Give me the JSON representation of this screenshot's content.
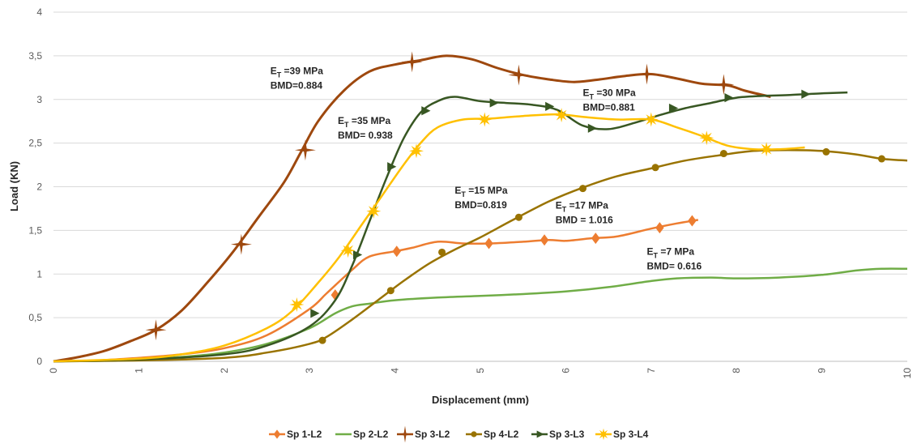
{
  "chart_data": {
    "type": "line",
    "title": "",
    "xlabel": "Displacement (mm)",
    "ylabel": "Load (KN)",
    "xlim": [
      0,
      10
    ],
    "ylim": [
      0,
      4
    ],
    "x_ticks": [
      "0",
      "1",
      "2",
      "3",
      "4",
      "5",
      "6",
      "7",
      "8",
      "9",
      "10"
    ],
    "y_ticks": [
      "0",
      "0,5",
      "1",
      "1,5",
      "2",
      "2,5",
      "3",
      "3,5",
      "4"
    ],
    "grid": "horizontal",
    "legend_position": "bottom",
    "series": [
      {
        "name": "Sp 1-L2",
        "color": "#ED7D31",
        "marker": "diamond",
        "points": [
          [
            0,
            0
          ],
          [
            0.5,
            0.01
          ],
          [
            1,
            0.04
          ],
          [
            1.5,
            0.08
          ],
          [
            2,
            0.15
          ],
          [
            2.5,
            0.3
          ],
          [
            3,
            0.6
          ],
          [
            3.2,
            0.78
          ],
          [
            3.5,
            1.05
          ],
          [
            3.7,
            1.2
          ],
          [
            4,
            1.26
          ],
          [
            4.2,
            1.3
          ],
          [
            4.5,
            1.37
          ],
          [
            4.8,
            1.35
          ],
          [
            5.1,
            1.35
          ],
          [
            5.5,
            1.37
          ],
          [
            5.8,
            1.39
          ],
          [
            6,
            1.38
          ],
          [
            6.3,
            1.41
          ],
          [
            6.6,
            1.43
          ],
          [
            7,
            1.52
          ],
          [
            7.3,
            1.58
          ],
          [
            7.55,
            1.62
          ]
        ],
        "markers_at": [
          [
            3.3,
            0.76
          ],
          [
            4.02,
            1.26
          ],
          [
            5.1,
            1.35
          ],
          [
            5.75,
            1.39
          ],
          [
            6.35,
            1.41
          ],
          [
            7.1,
            1.53
          ],
          [
            7.48,
            1.61
          ]
        ]
      },
      {
        "name": "Sp 2-L2",
        "color": "#70AD47",
        "marker": "dash",
        "points": [
          [
            0,
            0
          ],
          [
            0.5,
            0.005
          ],
          [
            1,
            0.02
          ],
          [
            1.5,
            0.05
          ],
          [
            2,
            0.1
          ],
          [
            2.5,
            0.2
          ],
          [
            3,
            0.38
          ],
          [
            3.3,
            0.55
          ],
          [
            3.5,
            0.63
          ],
          [
            3.7,
            0.66
          ],
          [
            4,
            0.7
          ],
          [
            4.5,
            0.73
          ],
          [
            5,
            0.75
          ],
          [
            5.5,
            0.77
          ],
          [
            6,
            0.8
          ],
          [
            6.5,
            0.85
          ],
          [
            7,
            0.92
          ],
          [
            7.3,
            0.95
          ],
          [
            7.7,
            0.96
          ],
          [
            8,
            0.95
          ],
          [
            8.5,
            0.96
          ],
          [
            9,
            0.99
          ],
          [
            9.4,
            1.04
          ],
          [
            9.7,
            1.06
          ],
          [
            10,
            1.06
          ]
        ],
        "markers_at": []
      },
      {
        "name": "Sp 3-L2",
        "color": "#9E480E",
        "marker": "star4",
        "points": [
          [
            0,
            0
          ],
          [
            0.3,
            0.05
          ],
          [
            0.6,
            0.12
          ],
          [
            0.9,
            0.23
          ],
          [
            1.2,
            0.36
          ],
          [
            1.5,
            0.58
          ],
          [
            1.8,
            0.9
          ],
          [
            2.1,
            1.25
          ],
          [
            2.4,
            1.65
          ],
          [
            2.7,
            2.05
          ],
          [
            2.9,
            2.4
          ],
          [
            3.1,
            2.75
          ],
          [
            3.4,
            3.1
          ],
          [
            3.7,
            3.32
          ],
          [
            4,
            3.4
          ],
          [
            4.3,
            3.45
          ],
          [
            4.6,
            3.5
          ],
          [
            4.9,
            3.46
          ],
          [
            5.2,
            3.36
          ],
          [
            5.5,
            3.28
          ],
          [
            5.8,
            3.23
          ],
          [
            6.1,
            3.2
          ],
          [
            6.4,
            3.23
          ],
          [
            6.7,
            3.27
          ],
          [
            7,
            3.29
          ],
          [
            7.3,
            3.24
          ],
          [
            7.6,
            3.18
          ],
          [
            7.9,
            3.16
          ],
          [
            8.1,
            3.1
          ],
          [
            8.4,
            3.03
          ]
        ],
        "markers_at": [
          [
            1.2,
            0.36
          ],
          [
            2.2,
            1.34
          ],
          [
            2.95,
            2.42
          ],
          [
            4.2,
            3.43
          ],
          [
            5.45,
            3.28
          ],
          [
            6.95,
            3.29
          ],
          [
            7.85,
            3.17
          ]
        ]
      },
      {
        "name": "Sp 4-L2",
        "color": "#997300",
        "marker": "circle",
        "points": [
          [
            0,
            0
          ],
          [
            1,
            0.01
          ],
          [
            2,
            0.04
          ],
          [
            2.5,
            0.1
          ],
          [
            3,
            0.2
          ],
          [
            3.2,
            0.28
          ],
          [
            3.5,
            0.48
          ],
          [
            3.8,
            0.7
          ],
          [
            4.1,
            0.92
          ],
          [
            4.4,
            1.12
          ],
          [
            4.7,
            1.28
          ],
          [
            5,
            1.42
          ],
          [
            5.4,
            1.63
          ],
          [
            5.8,
            1.83
          ],
          [
            6.2,
            1.99
          ],
          [
            6.6,
            2.12
          ],
          [
            7,
            2.21
          ],
          [
            7.4,
            2.3
          ],
          [
            7.8,
            2.36
          ],
          [
            8.2,
            2.41
          ],
          [
            8.6,
            2.42
          ],
          [
            9,
            2.41
          ],
          [
            9.4,
            2.37
          ],
          [
            9.7,
            2.32
          ],
          [
            10,
            2.3
          ]
        ],
        "markers_at": [
          [
            3.15,
            0.24
          ],
          [
            3.95,
            0.81
          ],
          [
            4.55,
            1.25
          ],
          [
            5.45,
            1.65
          ],
          [
            6.2,
            1.98
          ],
          [
            7.05,
            2.22
          ],
          [
            7.85,
            2.38
          ],
          [
            9.05,
            2.4
          ],
          [
            9.7,
            2.32
          ]
        ]
      },
      {
        "name": "Sp 3-L3",
        "color": "#385723",
        "marker": "triangle",
        "points": [
          [
            0,
            0
          ],
          [
            1,
            0.02
          ],
          [
            2,
            0.08
          ],
          [
            2.5,
            0.18
          ],
          [
            3,
            0.4
          ],
          [
            3.3,
            0.7
          ],
          [
            3.5,
            1.1
          ],
          [
            3.7,
            1.6
          ],
          [
            3.9,
            2.1
          ],
          [
            4.1,
            2.55
          ],
          [
            4.3,
            2.85
          ],
          [
            4.5,
            2.98
          ],
          [
            4.7,
            3.03
          ],
          [
            5,
            2.98
          ],
          [
            5.3,
            2.96
          ],
          [
            5.6,
            2.94
          ],
          [
            5.9,
            2.88
          ],
          [
            6.2,
            2.7
          ],
          [
            6.5,
            2.66
          ],
          [
            6.8,
            2.73
          ],
          [
            7.1,
            2.82
          ],
          [
            7.4,
            2.9
          ],
          [
            7.7,
            2.96
          ],
          [
            8,
            3.02
          ],
          [
            8.3,
            3.04
          ],
          [
            8.6,
            3.05
          ],
          [
            9,
            3.07
          ],
          [
            9.3,
            3.08
          ]
        ],
        "markers_at": [
          [
            3.05,
            0.55
          ],
          [
            3.55,
            1.22
          ],
          [
            3.95,
            2.23
          ],
          [
            4.35,
            2.87
          ],
          [
            5.15,
            2.96
          ],
          [
            5.8,
            2.92
          ],
          [
            6.3,
            2.67
          ],
          [
            7.25,
            2.9
          ],
          [
            7.9,
            3.02
          ],
          [
            8.8,
            3.06
          ]
        ]
      },
      {
        "name": "Sp 3-L4",
        "color": "#FFC000",
        "marker": "star8",
        "points": [
          [
            0,
            0
          ],
          [
            1,
            0.03
          ],
          [
            1.5,
            0.08
          ],
          [
            2,
            0.18
          ],
          [
            2.5,
            0.38
          ],
          [
            2.8,
            0.58
          ],
          [
            3.1,
            0.9
          ],
          [
            3.35,
            1.2
          ],
          [
            3.6,
            1.55
          ],
          [
            3.85,
            1.9
          ],
          [
            4.1,
            2.25
          ],
          [
            4.3,
            2.5
          ],
          [
            4.5,
            2.68
          ],
          [
            4.8,
            2.77
          ],
          [
            5.1,
            2.78
          ],
          [
            5.5,
            2.81
          ],
          [
            5.9,
            2.83
          ],
          [
            6.2,
            2.8
          ],
          [
            6.6,
            2.77
          ],
          [
            7,
            2.77
          ],
          [
            7.3,
            2.68
          ],
          [
            7.6,
            2.58
          ],
          [
            7.9,
            2.47
          ],
          [
            8.2,
            2.43
          ],
          [
            8.5,
            2.43
          ],
          [
            8.8,
            2.45
          ]
        ],
        "markers_at": [
          [
            2.85,
            0.65
          ],
          [
            3.45,
            1.27
          ],
          [
            3.75,
            1.72
          ],
          [
            4.25,
            2.41
          ],
          [
            5.05,
            2.77
          ],
          [
            5.95,
            2.82
          ],
          [
            7.0,
            2.77
          ],
          [
            7.65,
            2.56
          ],
          [
            8.35,
            2.43
          ]
        ]
      }
    ],
    "annotations": [
      {
        "x": 2.54,
        "y": 3.29,
        "lines": [
          {
            "base": "E",
            "sub": "T",
            "rest": " =39 MPa"
          },
          {
            "base": "BMD=0.884",
            "sub": "",
            "rest": ""
          }
        ]
      },
      {
        "x": 3.33,
        "y": 2.72,
        "lines": [
          {
            "base": "E",
            "sub": "T",
            "rest": " =35 MPa"
          },
          {
            "base": "BMD= 0.938",
            "sub": "",
            "rest": ""
          }
        ]
      },
      {
        "x": 6.2,
        "y": 3.04,
        "lines": [
          {
            "base": "E",
            "sub": "T",
            "rest": " =30 MPa"
          },
          {
            "base": "BMD=0.881",
            "sub": "",
            "rest": ""
          }
        ]
      },
      {
        "x": 4.7,
        "y": 1.92,
        "lines": [
          {
            "base": "E",
            "sub": "T",
            "rest": " =15 MPa"
          },
          {
            "base": "BMD=0.819",
            "sub": "",
            "rest": ""
          }
        ]
      },
      {
        "x": 5.88,
        "y": 1.75,
        "lines": [
          {
            "base": "E",
            "sub": "T",
            "rest": " =17 MPa"
          },
          {
            "base": "BMD = 1.016",
            "sub": "",
            "rest": ""
          }
        ]
      },
      {
        "x": 6.95,
        "y": 1.22,
        "lines": [
          {
            "base": "E",
            "sub": "T",
            "rest": " =7 MPa"
          },
          {
            "base": "BMD= 0.616",
            "sub": "",
            "rest": ""
          }
        ]
      }
    ]
  }
}
